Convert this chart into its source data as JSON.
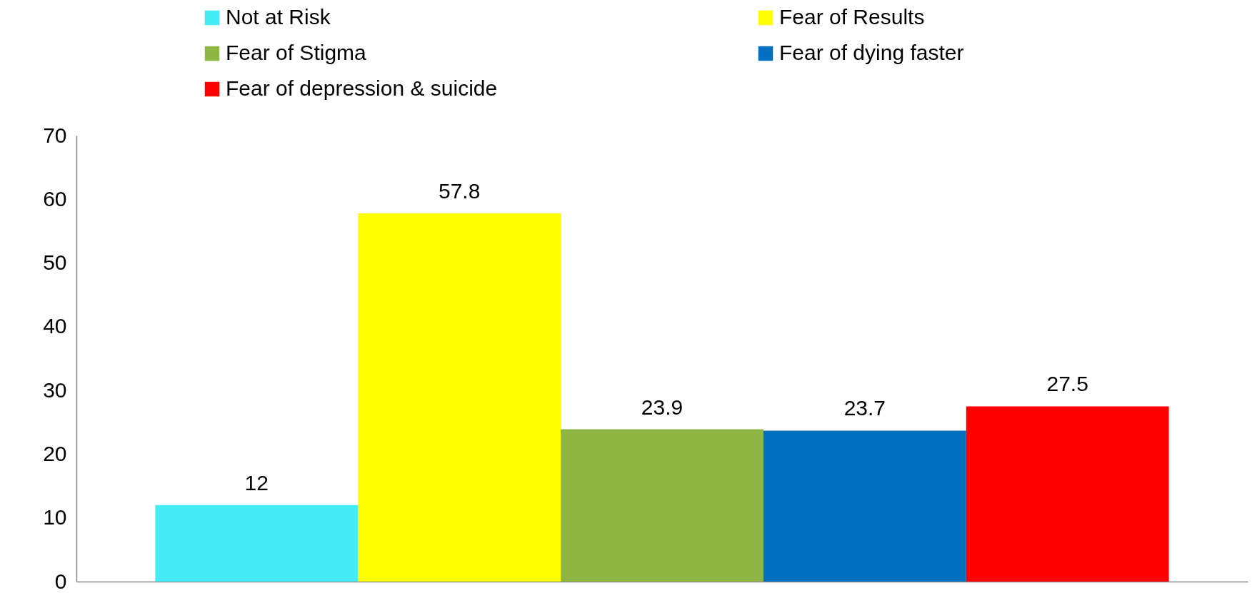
{
  "chart_data": {
    "type": "bar",
    "categories": [
      null
    ],
    "series": [
      {
        "name": "Not at Risk",
        "color": "#45ebf5",
        "values": [
          12
        ]
      },
      {
        "name": "Fear of Results",
        "color": "#ffff00",
        "values": [
          57.8
        ]
      },
      {
        "name": "Fear of Stigma",
        "color": "#8db644",
        "values": [
          23.9
        ]
      },
      {
        "name": "Fear of dying faster",
        "color": "#0070c0",
        "values": [
          23.7
        ]
      },
      {
        "name": "Fear of depression & suicide",
        "color": "#ff0000",
        "values": [
          27.5
        ]
      }
    ],
    "ylim": [
      0,
      70
    ],
    "yticks": [
      0,
      10,
      20,
      30,
      40,
      50,
      60,
      70
    ],
    "data_labels": true,
    "legend": "top",
    "grid": false
  }
}
